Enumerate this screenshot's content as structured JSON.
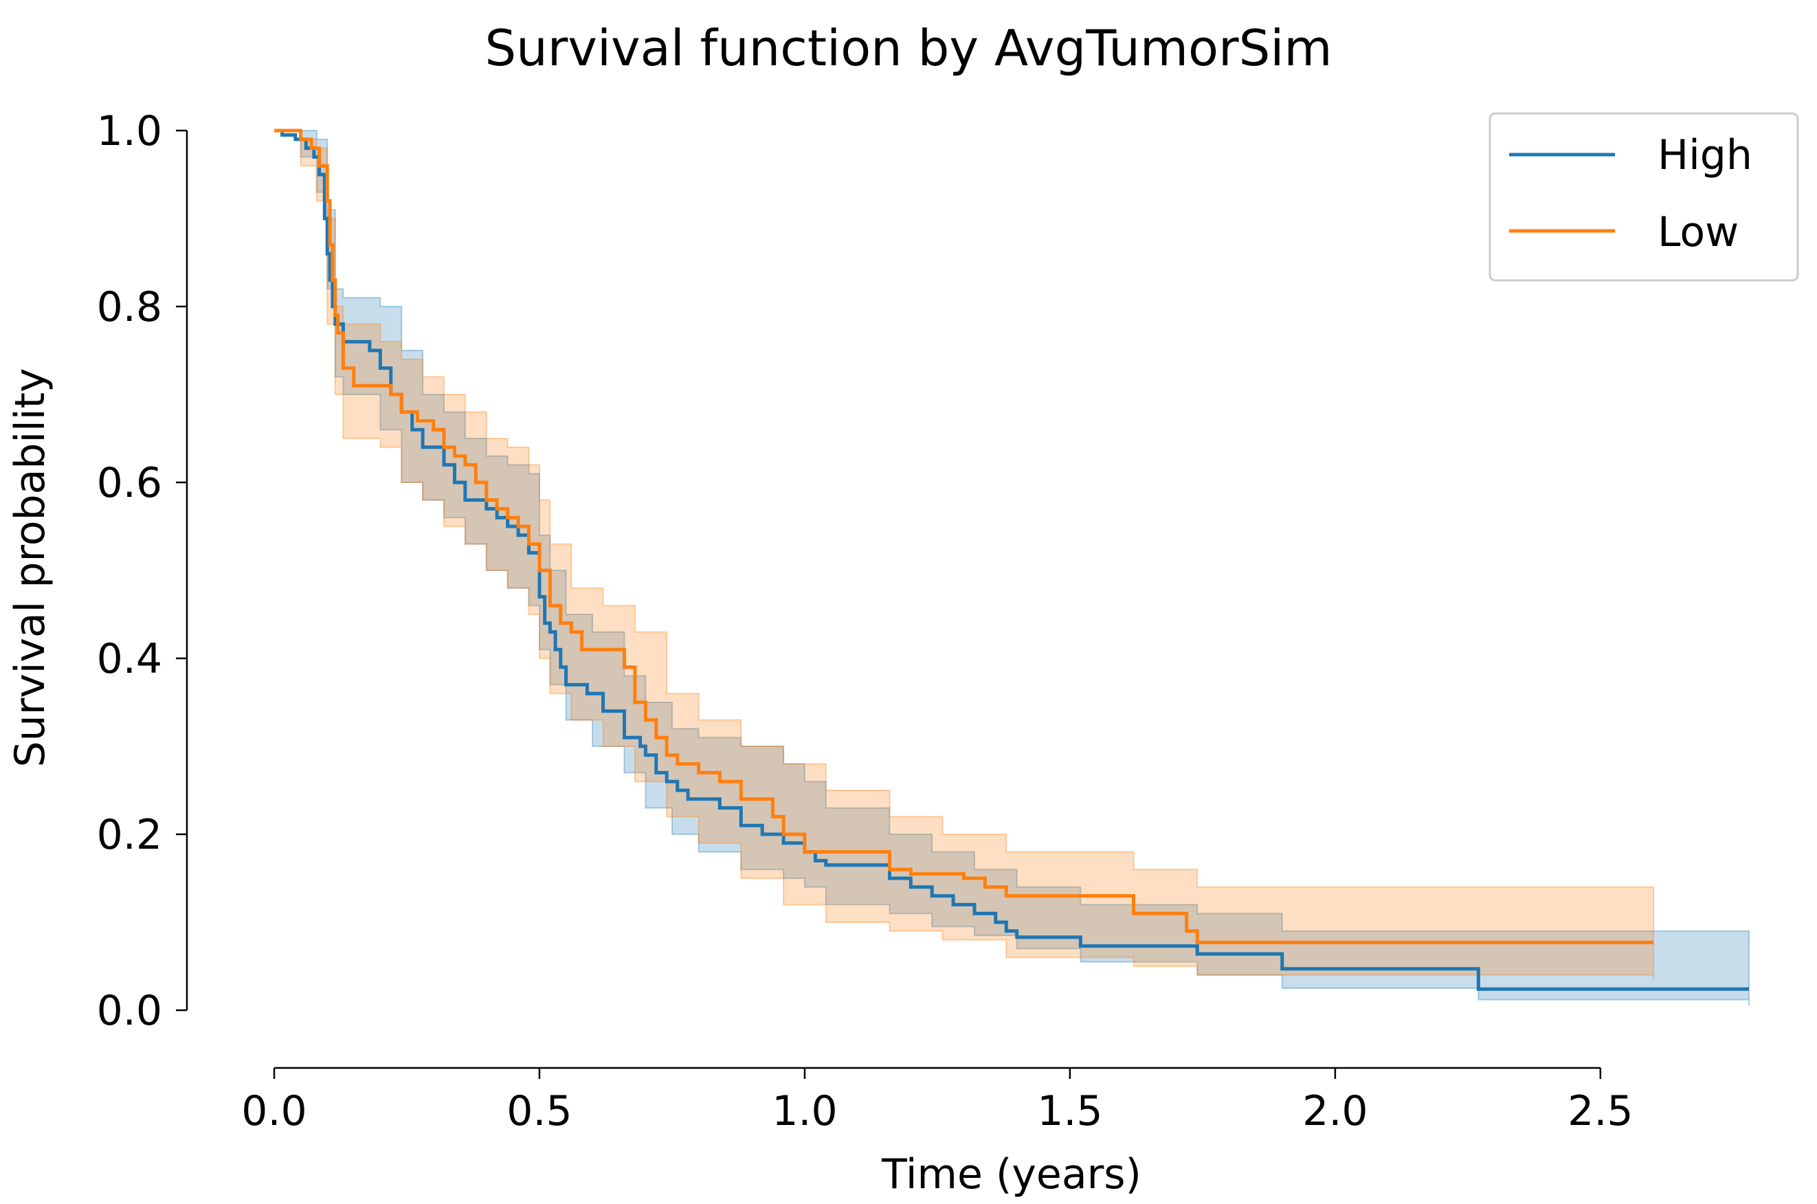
{
  "chart_data": {
    "type": "line",
    "title": "Survival function by AvgTumorSim",
    "xlabel": "Time (years)",
    "ylabel": "Survival probability",
    "xlim": [
      0,
      2.78
    ],
    "ylim": [
      0,
      1.0
    ],
    "xticks": [
      {
        "value": 0.0,
        "label": "0.0"
      },
      {
        "value": 0.5,
        "label": "0.5"
      },
      {
        "value": 1.0,
        "label": "1.0"
      },
      {
        "value": 1.5,
        "label": "1.5"
      },
      {
        "value": 2.0,
        "label": "2.0"
      },
      {
        "value": 2.5,
        "label": "2.5"
      }
    ],
    "yticks": [
      {
        "value": 0.0,
        "label": "0.0"
      },
      {
        "value": 0.2,
        "label": "0.2"
      },
      {
        "value": 0.4,
        "label": "0.4"
      },
      {
        "value": 0.6,
        "label": "0.6"
      },
      {
        "value": 0.8,
        "label": "0.8"
      },
      {
        "value": 1.0,
        "label": "1.0"
      }
    ],
    "grid": false,
    "legend_position": "top-right",
    "series": [
      {
        "name": "High",
        "color": "#1f77b4",
        "x": [
          0,
          0.015,
          0.04,
          0.06,
          0.075,
          0.085,
          0.095,
          0.1,
          0.105,
          0.11,
          0.115,
          0.13,
          0.15,
          0.18,
          0.2,
          0.22,
          0.24,
          0.26,
          0.28,
          0.3,
          0.32,
          0.34,
          0.36,
          0.38,
          0.4,
          0.42,
          0.44,
          0.46,
          0.48,
          0.5,
          0.51,
          0.52,
          0.53,
          0.54,
          0.55,
          0.57,
          0.59,
          0.62,
          0.66,
          0.69,
          0.7,
          0.72,
          0.74,
          0.76,
          0.78,
          0.8,
          0.84,
          0.88,
          0.92,
          0.96,
          1.0,
          1.02,
          1.04,
          1.16,
          1.2,
          1.24,
          1.28,
          1.32,
          1.36,
          1.38,
          1.4,
          1.52,
          1.64,
          1.74,
          1.9,
          2.27,
          2.78
        ],
        "y": [
          1.0,
          0.995,
          0.99,
          0.98,
          0.97,
          0.95,
          0.9,
          0.86,
          0.83,
          0.8,
          0.78,
          0.76,
          0.76,
          0.75,
          0.73,
          0.7,
          0.68,
          0.66,
          0.64,
          0.64,
          0.62,
          0.6,
          0.58,
          0.58,
          0.57,
          0.56,
          0.55,
          0.54,
          0.52,
          0.47,
          0.44,
          0.43,
          0.41,
          0.39,
          0.37,
          0.37,
          0.36,
          0.34,
          0.31,
          0.3,
          0.29,
          0.27,
          0.26,
          0.25,
          0.24,
          0.24,
          0.23,
          0.21,
          0.2,
          0.19,
          0.18,
          0.17,
          0.165,
          0.15,
          0.14,
          0.13,
          0.12,
          0.11,
          0.1,
          0.09,
          0.083,
          0.073,
          0.073,
          0.064,
          0.047,
          0.024,
          0.024
        ]
      },
      {
        "name": "Low",
        "color": "#ff7f0e",
        "x": [
          0,
          0.05,
          0.07,
          0.085,
          0.1,
          0.105,
          0.11,
          0.115,
          0.12,
          0.13,
          0.15,
          0.2,
          0.22,
          0.24,
          0.27,
          0.3,
          0.32,
          0.34,
          0.36,
          0.38,
          0.4,
          0.42,
          0.44,
          0.46,
          0.48,
          0.5,
          0.52,
          0.54,
          0.56,
          0.58,
          0.64,
          0.66,
          0.68,
          0.7,
          0.72,
          0.74,
          0.76,
          0.8,
          0.84,
          0.88,
          0.94,
          0.96,
          1.0,
          1.16,
          1.2,
          1.3,
          1.34,
          1.38,
          1.62,
          1.72,
          1.74,
          2.6
        ],
        "y": [
          1.0,
          0.99,
          0.98,
          0.96,
          0.92,
          0.87,
          0.83,
          0.79,
          0.77,
          0.73,
          0.71,
          0.71,
          0.7,
          0.68,
          0.67,
          0.66,
          0.64,
          0.63,
          0.62,
          0.6,
          0.58,
          0.57,
          0.56,
          0.55,
          0.53,
          0.5,
          0.46,
          0.44,
          0.43,
          0.41,
          0.41,
          0.39,
          0.35,
          0.33,
          0.31,
          0.29,
          0.28,
          0.27,
          0.26,
          0.24,
          0.22,
          0.2,
          0.18,
          0.16,
          0.155,
          0.15,
          0.14,
          0.13,
          0.11,
          0.09,
          0.077,
          0.077
        ]
      }
    ],
    "confidence_bands": [
      {
        "series": "High",
        "color": "#1f77b4",
        "x": [
          0,
          0.05,
          0.08,
          0.1,
          0.115,
          0.13,
          0.2,
          0.24,
          0.28,
          0.32,
          0.36,
          0.4,
          0.44,
          0.48,
          0.5,
          0.52,
          0.55,
          0.6,
          0.66,
          0.7,
          0.75,
          0.8,
          0.88,
          0.96,
          1.0,
          1.04,
          1.16,
          1.24,
          1.32,
          1.4,
          1.52,
          1.74,
          1.9,
          2.27,
          2.78
        ],
        "lower": [
          1.0,
          0.97,
          0.93,
          0.82,
          0.72,
          0.7,
          0.66,
          0.6,
          0.58,
          0.56,
          0.53,
          0.5,
          0.48,
          0.46,
          0.41,
          0.37,
          0.33,
          0.3,
          0.27,
          0.23,
          0.2,
          0.18,
          0.16,
          0.15,
          0.14,
          0.12,
          0.11,
          0.095,
          0.085,
          0.07,
          0.055,
          0.04,
          0.025,
          0.012,
          0.005
        ],
        "upper": [
          1.0,
          1.0,
          0.99,
          0.91,
          0.82,
          0.81,
          0.8,
          0.75,
          0.7,
          0.68,
          0.65,
          0.63,
          0.62,
          0.61,
          0.54,
          0.5,
          0.45,
          0.43,
          0.38,
          0.35,
          0.32,
          0.31,
          0.3,
          0.28,
          0.26,
          0.23,
          0.2,
          0.18,
          0.16,
          0.14,
          0.12,
          0.11,
          0.09,
          0.09,
          0.09
        ]
      },
      {
        "series": "Low",
        "color": "#ff7f0e",
        "x": [
          0,
          0.05,
          0.08,
          0.1,
          0.115,
          0.13,
          0.2,
          0.24,
          0.28,
          0.32,
          0.36,
          0.4,
          0.44,
          0.48,
          0.5,
          0.52,
          0.56,
          0.62,
          0.68,
          0.74,
          0.8,
          0.88,
          0.96,
          1.04,
          1.16,
          1.26,
          1.38,
          1.62,
          1.74,
          2.6
        ],
        "lower": [
          1.0,
          0.96,
          0.92,
          0.78,
          0.7,
          0.65,
          0.64,
          0.6,
          0.58,
          0.55,
          0.53,
          0.5,
          0.48,
          0.45,
          0.4,
          0.36,
          0.33,
          0.3,
          0.26,
          0.22,
          0.19,
          0.15,
          0.12,
          0.1,
          0.09,
          0.08,
          0.06,
          0.05,
          0.04,
          0.035
        ],
        "upper": [
          1.0,
          0.99,
          0.98,
          0.9,
          0.8,
          0.78,
          0.76,
          0.74,
          0.72,
          0.7,
          0.68,
          0.65,
          0.64,
          0.62,
          0.58,
          0.53,
          0.48,
          0.46,
          0.43,
          0.36,
          0.33,
          0.3,
          0.28,
          0.25,
          0.22,
          0.2,
          0.18,
          0.16,
          0.14,
          0.14
        ]
      }
    ]
  }
}
